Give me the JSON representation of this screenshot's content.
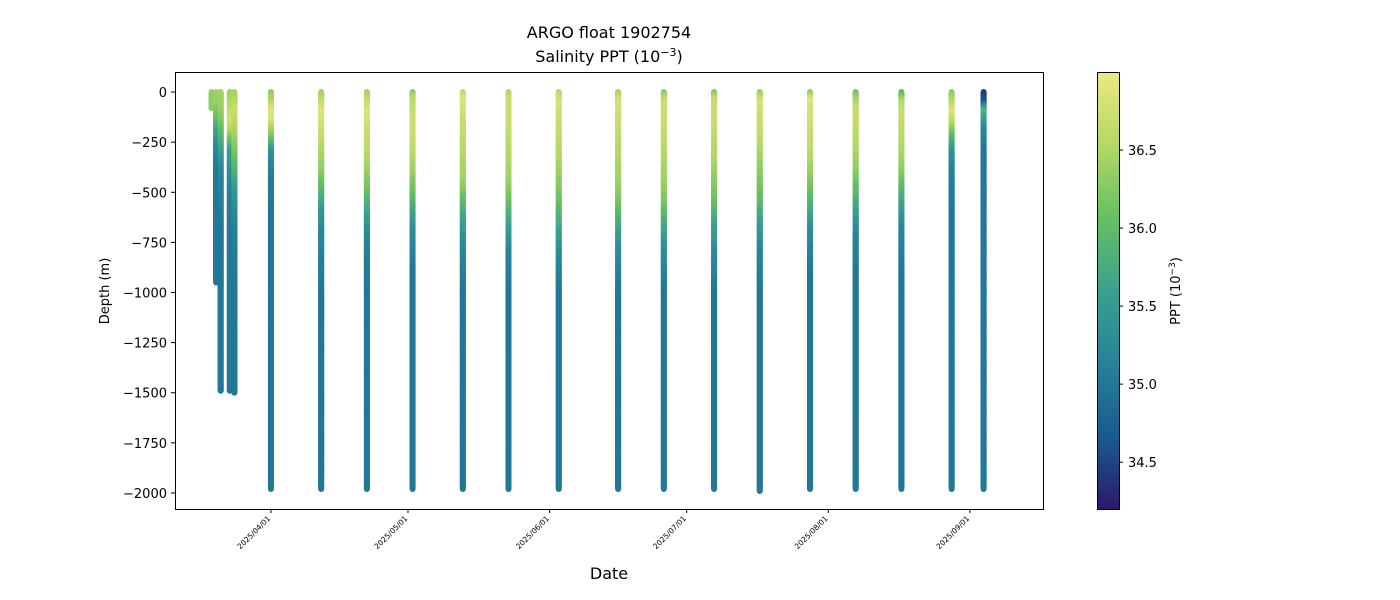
{
  "chart_data": {
    "type": "scatter",
    "title": "ARGO float 1902754",
    "subtitle_prefix": "Salinity PPT (10",
    "subtitle_exp": "−3",
    "subtitle_suffix": ")",
    "xlabel": "Date",
    "ylabel": "Depth (m)",
    "colorbar_label_prefix": "PPT (10",
    "colorbar_label_exp": "−3",
    "colorbar_label_suffix": ")",
    "ylim": [
      -2080,
      100
    ],
    "xlim": [
      "2025-03-11",
      "2025-09-17"
    ],
    "yticks": [
      0,
      -250,
      -500,
      -750,
      -1000,
      -1250,
      -1500,
      -1750,
      -2000
    ],
    "ytick_labels": [
      "0",
      "−250",
      "−500",
      "−750",
      "−1000",
      "−1250",
      "−1500",
      "−1750",
      "−2000"
    ],
    "xticks": [
      "2025/04/01",
      "2025/05/01",
      "2025/06/01",
      "2025/07/01",
      "2025/08/01",
      "2025/09/01"
    ],
    "colorbar_ticks": [
      34.5,
      35.0,
      35.5,
      36.0,
      36.5
    ],
    "colorbar_tick_labels": [
      "34.5",
      "35.0",
      "35.5",
      "36.0",
      "36.5"
    ],
    "color_range": [
      34.2,
      37.0
    ],
    "colormap": [
      "#2a186c",
      "#1a5b8f",
      "#26829a",
      "#3aa08f",
      "#66bf63",
      "#b4d865",
      "#ede783"
    ],
    "series": [
      {
        "date": "2025-03-19",
        "depth": [
          0,
          -80
        ],
        "salinity": [
          36.35,
          36.3
        ]
      },
      {
        "date": "2025-03-20",
        "depth": [
          0,
          -50,
          -100,
          -150,
          -200,
          -300,
          -400,
          -600,
          -800,
          -950
        ],
        "salinity": [
          36.4,
          36.4,
          36.2,
          36.0,
          35.6,
          35.2,
          35.0,
          35.0,
          35.0,
          35.0
        ]
      },
      {
        "date": "2025-03-21",
        "depth": [
          0,
          -80,
          -150,
          -250,
          -400,
          -700,
          -1000,
          -1300,
          -1490
        ],
        "salinity": [
          36.4,
          36.4,
          36.2,
          35.8,
          35.2,
          35.0,
          35.0,
          35.0,
          35.0
        ]
      },
      {
        "date": "2025-03-23",
        "depth": [
          0,
          -100,
          -150,
          -200,
          -300,
          -500,
          -800,
          -1100,
          -1490
        ],
        "salinity": [
          36.4,
          36.6,
          36.8,
          36.5,
          35.6,
          35.1,
          35.0,
          35.0,
          35.0
        ]
      },
      {
        "date": "2025-03-24",
        "depth": [
          0,
          -100,
          -200,
          -300,
          -500,
          -700,
          -1000,
          -1300,
          -1500
        ],
        "salinity": [
          36.4,
          36.7,
          36.5,
          36.2,
          35.5,
          35.1,
          35.0,
          35.0,
          35.0
        ]
      },
      {
        "date": "2025-04-01",
        "depth": [
          0,
          -50,
          -100,
          -150,
          -200,
          -250,
          -300,
          -400,
          -600,
          -1000,
          -1500,
          -1980
        ],
        "salinity": [
          36.3,
          36.5,
          36.9,
          36.8,
          36.4,
          36.0,
          35.4,
          35.1,
          35.0,
          35.0,
          35.0,
          35.0
        ]
      },
      {
        "date": "2025-04-12",
        "depth": [
          0,
          -50,
          -100,
          -200,
          -300,
          -400,
          -500,
          -600,
          -700,
          -1000,
          -1500,
          -1980
        ],
        "salinity": [
          36.4,
          36.6,
          36.9,
          36.7,
          36.5,
          36.3,
          35.9,
          35.5,
          35.2,
          35.0,
          35.0,
          35.0
        ]
      },
      {
        "date": "2025-04-22",
        "depth": [
          0,
          -100,
          -200,
          -300,
          -400,
          -500,
          -600,
          -700,
          -800,
          -1000,
          -1500,
          -1980
        ],
        "salinity": [
          36.4,
          36.9,
          36.7,
          36.6,
          36.4,
          36.1,
          35.7,
          35.3,
          35.1,
          35.0,
          35.0,
          35.0
        ]
      },
      {
        "date": "2025-05-02",
        "depth": [
          0,
          -50,
          -100,
          -200,
          -300,
          -400,
          -500,
          -600,
          -700,
          -900,
          -1500,
          -1980
        ],
        "salinity": [
          36.3,
          36.6,
          36.7,
          36.7,
          36.6,
          36.4,
          36.1,
          35.7,
          35.3,
          35.0,
          35.0,
          35.0
        ]
      },
      {
        "date": "2025-05-13",
        "depth": [
          0,
          -50,
          -150,
          -250,
          -350,
          -450,
          -550,
          -650,
          -800,
          -1000,
          -1500,
          -1980
        ],
        "salinity": [
          36.6,
          36.9,
          36.7,
          36.6,
          36.5,
          36.4,
          36.0,
          35.6,
          35.2,
          35.0,
          35.0,
          35.0
        ]
      },
      {
        "date": "2025-05-23",
        "depth": [
          0,
          -50,
          -150,
          -250,
          -350,
          -450,
          -550,
          -650,
          -800,
          -1000,
          -1500,
          -1980
        ],
        "salinity": [
          36.5,
          36.7,
          36.7,
          36.6,
          36.5,
          36.4,
          36.1,
          35.7,
          35.2,
          35.0,
          35.0,
          35.0
        ]
      },
      {
        "date": "2025-06-03",
        "depth": [
          0,
          -50,
          -150,
          -250,
          -350,
          -450,
          -550,
          -650,
          -800,
          -1000,
          -1500,
          -1980
        ],
        "salinity": [
          36.5,
          36.8,
          36.7,
          36.6,
          36.5,
          36.3,
          36.1,
          35.8,
          35.3,
          35.0,
          35.0,
          35.0
        ]
      },
      {
        "date": "2025-06-16",
        "depth": [
          0,
          -50,
          -150,
          -250,
          -350,
          -450,
          -550,
          -650,
          -800,
          -1000,
          -1500,
          -1980
        ],
        "salinity": [
          36.4,
          36.8,
          36.7,
          36.6,
          36.5,
          36.4,
          36.2,
          35.8,
          35.3,
          35.0,
          35.0,
          35.0
        ]
      },
      {
        "date": "2025-06-26",
        "depth": [
          0,
          -50,
          -150,
          -250,
          -350,
          -450,
          -550,
          -650,
          -800,
          -1000,
          -1500,
          -1980
        ],
        "salinity": [
          36.2,
          36.7,
          36.7,
          36.6,
          36.5,
          36.4,
          36.2,
          35.8,
          35.3,
          35.0,
          35.0,
          35.0
        ]
      },
      {
        "date": "2025-07-07",
        "depth": [
          0,
          -50,
          -150,
          -250,
          -350,
          -450,
          -550,
          -650,
          -800,
          -1000,
          -1500,
          -1980
        ],
        "salinity": [
          36.2,
          36.7,
          36.7,
          36.6,
          36.5,
          36.3,
          36.1,
          35.7,
          35.3,
          35.0,
          35.0,
          35.0
        ]
      },
      {
        "date": "2025-07-17",
        "depth": [
          0,
          -50,
          -150,
          -250,
          -350,
          -450,
          -550,
          -650,
          -800,
          -1000,
          -1500,
          -1990
        ],
        "salinity": [
          36.3,
          36.8,
          36.7,
          36.6,
          36.4,
          36.2,
          36.0,
          35.6,
          35.2,
          35.0,
          35.0,
          35.0
        ]
      },
      {
        "date": "2025-07-28",
        "depth": [
          0,
          -50,
          -100,
          -200,
          -300,
          -400,
          -500,
          -600,
          -700,
          -900,
          -1500,
          -1980
        ],
        "salinity": [
          36.3,
          36.9,
          36.8,
          36.7,
          36.6,
          36.4,
          36.1,
          35.7,
          35.3,
          35.0,
          35.0,
          35.0
        ]
      },
      {
        "date": "2025-08-07",
        "depth": [
          0,
          -50,
          -100,
          -200,
          -300,
          -400,
          -500,
          -600,
          -700,
          -900,
          -1500,
          -1980
        ],
        "salinity": [
          36.1,
          36.5,
          36.7,
          36.6,
          36.5,
          36.3,
          36.0,
          35.6,
          35.2,
          35.0,
          35.0,
          35.0
        ]
      },
      {
        "date": "2025-08-17",
        "depth": [
          0,
          -50,
          -100,
          -200,
          -300,
          -400,
          -500,
          -600,
          -700,
          -900,
          -1500,
          -1980
        ],
        "salinity": [
          35.9,
          36.5,
          36.7,
          36.6,
          36.5,
          36.3,
          35.9,
          35.5,
          35.2,
          35.0,
          35.0,
          35.0
        ]
      },
      {
        "date": "2025-08-28",
        "depth": [
          0,
          -50,
          -100,
          -150,
          -200,
          -250,
          -300,
          -400,
          -600,
          -1000,
          -1500,
          -1980
        ],
        "salinity": [
          36.3,
          36.5,
          36.9,
          36.6,
          36.2,
          35.8,
          35.4,
          35.1,
          35.0,
          35.0,
          35.0,
          35.0
        ]
      },
      {
        "date": "2025-09-04",
        "depth": [
          0,
          -50,
          -100,
          -150,
          -200,
          -300,
          -500,
          -800,
          -1200,
          -1600,
          -1980
        ],
        "salinity": [
          34.4,
          34.6,
          35.9,
          35.5,
          35.2,
          35.0,
          35.0,
          35.0,
          35.0,
          35.0,
          35.0
        ]
      }
    ]
  }
}
